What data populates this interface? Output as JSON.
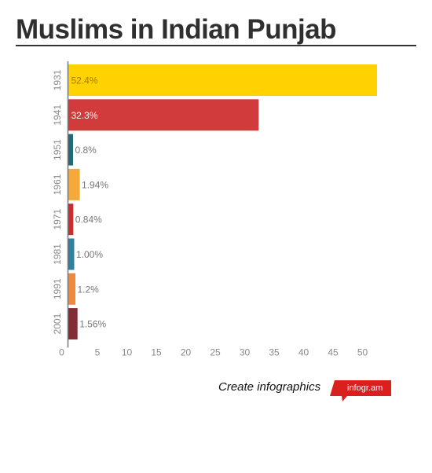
{
  "title": "Muslims in Indian Punjab",
  "chart_data": {
    "type": "bar",
    "orientation": "horizontal",
    "categories": [
      "1931",
      "1941",
      "1951",
      "1961",
      "1971",
      "1981",
      "1991",
      "2001"
    ],
    "values": [
      52.4,
      32.3,
      0.8,
      1.94,
      0.84,
      1.0,
      1.2,
      1.56
    ],
    "data_labels": [
      "52.4%",
      "32.3%",
      "0.8%",
      "1.94%",
      "0.84%",
      "1.00%",
      "1.2%",
      "1.56%"
    ],
    "colors": [
      "#ffd200",
      "#d23b3b",
      "#236a77",
      "#f4a93a",
      "#c8302f",
      "#2e81a1",
      "#ef8a3c",
      "#832b36"
    ],
    "xticks": [
      0,
      5,
      10,
      15,
      20,
      25,
      30,
      35,
      40,
      45,
      50
    ],
    "xlim": [
      0,
      55
    ],
    "grid": false,
    "title": "Muslims in Indian Punjab"
  },
  "footer": {
    "create_text": "Create infographics",
    "badge_text": "infogr.am",
    "badge_color": "#d9201f"
  }
}
